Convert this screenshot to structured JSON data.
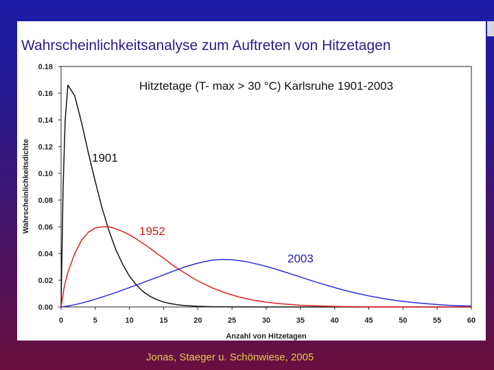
{
  "slide": {
    "title": "Wahrscheinlichkeitsanalyse zum Auftreten von Hitzetagen",
    "source": "Jonas, Staeger u. Schönwiese, 2005"
  },
  "colors": {
    "title": "#2a1a8c",
    "source": "#e6c84a",
    "series_1901": "#111111",
    "series_1952": "#e02020",
    "series_2003": "#2a2ad8"
  },
  "chart_data": {
    "type": "line",
    "title": "Hitztetage (T- max > 30 °C) Karlsruhe 1901-2003",
    "xlabel": "Anzahl von Hitzetagen",
    "ylabel": "Wahrscheinlichkeitsdichte",
    "xlim": [
      0,
      60
    ],
    "ylim": [
      0,
      0.18
    ],
    "x_ticks": [
      "0",
      "5",
      "10",
      "15",
      "20",
      "25",
      "30",
      "35",
      "40",
      "45",
      "50",
      "55",
      "60"
    ],
    "y_ticks": [
      "0.00",
      "0.02",
      "0.04",
      "0.06",
      "0.08",
      "0.10",
      "0.12",
      "0.14",
      "0.16",
      "0.18"
    ],
    "grid": false,
    "series": [
      {
        "name": "1901",
        "color": "#111111",
        "x": [
          0,
          0.3,
          0.6,
          1,
          2,
          3,
          4,
          5,
          6,
          7,
          8,
          9,
          10,
          11,
          12,
          13,
          14,
          15,
          16,
          17,
          18,
          20,
          22,
          25,
          30,
          40,
          60
        ],
        "y": [
          0.0,
          0.09,
          0.14,
          0.166,
          0.158,
          0.138,
          0.115,
          0.094,
          0.074,
          0.057,
          0.043,
          0.032,
          0.023,
          0.0165,
          0.0115,
          0.008,
          0.0055,
          0.0037,
          0.0025,
          0.0017,
          0.0011,
          0.0005,
          0.0002,
          5e-05,
          0.0,
          0.0,
          0.0
        ]
      },
      {
        "name": "1952",
        "color": "#e02020",
        "x": [
          0,
          0.5,
          1,
          2,
          3,
          4,
          5,
          6,
          7,
          8,
          9,
          10,
          11,
          12,
          13,
          14,
          15,
          16,
          17,
          18,
          19,
          20,
          22,
          24,
          26,
          28,
          30,
          32,
          35,
          38,
          41,
          45,
          50,
          55,
          60
        ],
        "y": [
          0.0,
          0.016,
          0.026,
          0.04,
          0.05,
          0.056,
          0.059,
          0.06,
          0.06,
          0.0585,
          0.0565,
          0.054,
          0.051,
          0.0475,
          0.044,
          0.04,
          0.0365,
          0.0325,
          0.029,
          0.0257,
          0.0225,
          0.0195,
          0.0145,
          0.0105,
          0.0075,
          0.0052,
          0.0036,
          0.0024,
          0.0013,
          0.0007,
          0.0003,
          0.0001,
          0.0,
          0.0,
          0.0
        ]
      },
      {
        "name": "2003",
        "color": "#2a2ad8",
        "x": [
          0,
          1,
          2,
          3,
          4,
          5,
          6,
          8,
          10,
          12,
          14,
          16,
          18,
          20,
          22,
          23.5,
          25,
          27,
          29,
          31,
          33,
          35,
          37,
          39,
          41,
          43,
          45,
          47,
          49,
          51,
          53,
          55,
          57,
          60
        ],
        "y": [
          0.0,
          0.0007,
          0.0017,
          0.0029,
          0.0043,
          0.0058,
          0.0074,
          0.0108,
          0.0145,
          0.0183,
          0.0221,
          0.026,
          0.0298,
          0.0328,
          0.035,
          0.0356,
          0.0354,
          0.034,
          0.0317,
          0.0289,
          0.0257,
          0.0224,
          0.0191,
          0.016,
          0.0131,
          0.0105,
          0.0083,
          0.0064,
          0.0048,
          0.0036,
          0.0026,
          0.0018,
          0.0012,
          0.0006
        ]
      }
    ]
  }
}
